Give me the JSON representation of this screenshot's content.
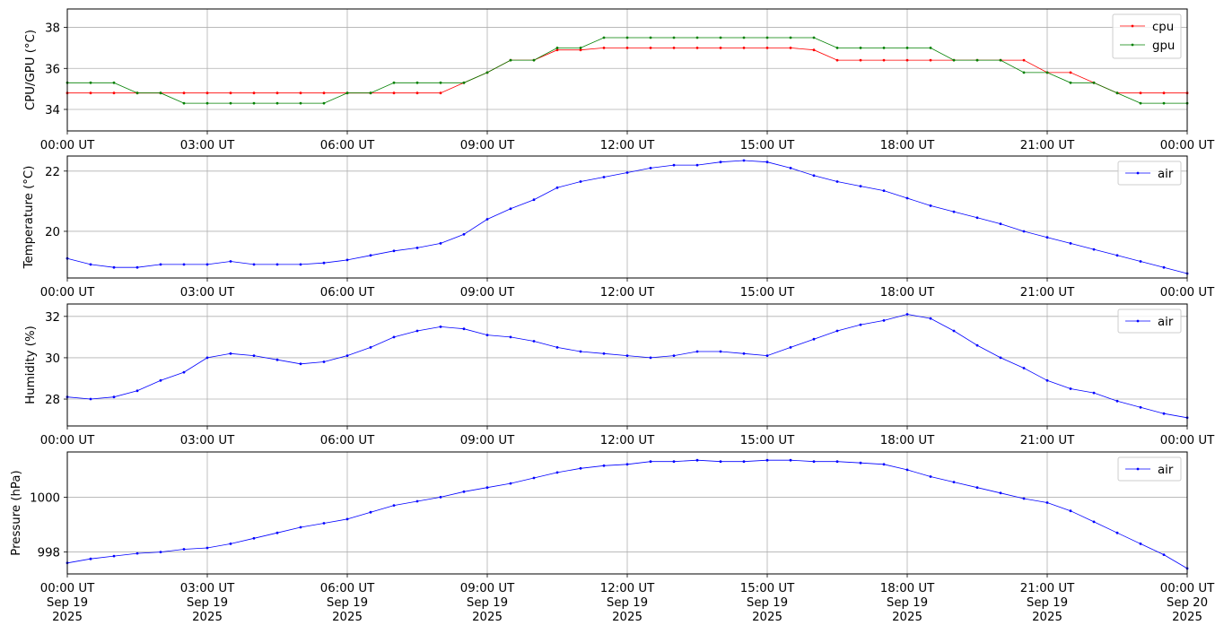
{
  "chart_data": [
    {
      "type": "line",
      "ylabel": "CPU/GPU (°C)",
      "ylim": [
        32.95,
        38.9
      ],
      "yticks": [
        34,
        36,
        38
      ],
      "xticks": [
        "00:00 UT",
        "03:00 UT",
        "06:00 UT",
        "09:00 UT",
        "12:00 UT",
        "15:00 UT",
        "18:00 UT",
        "21:00 UT",
        "00:00 UT"
      ],
      "grid": true,
      "legend": "top-right",
      "series": [
        {
          "name": "cpu",
          "color": "#ff0000",
          "x": [
            0,
            0.5,
            1,
            1.5,
            2,
            2.5,
            3,
            3.5,
            4,
            4.5,
            5,
            5.5,
            6,
            6.5,
            7,
            7.5,
            8,
            8.5,
            9,
            9.5,
            10,
            10.5,
            11,
            11.5,
            12,
            12.5,
            13,
            13.5,
            14,
            14.5,
            15,
            15.5,
            16,
            16.5,
            17,
            17.5,
            18,
            18.5,
            19,
            19.5,
            20,
            20.5,
            21,
            21.5,
            22,
            22.5,
            23,
            23.5,
            24
          ],
          "values": [
            34.8,
            34.8,
            34.8,
            34.8,
            34.8,
            34.8,
            34.8,
            34.8,
            34.8,
            34.8,
            34.8,
            34.8,
            34.8,
            34.8,
            34.8,
            34.8,
            34.8,
            35.3,
            35.8,
            36.4,
            36.4,
            36.9,
            36.9,
            37.0,
            37.0,
            37.0,
            37.0,
            37.0,
            37.0,
            37.0,
            37.0,
            37.0,
            36.9,
            36.4,
            36.4,
            36.4,
            36.4,
            36.4,
            36.4,
            36.4,
            36.4,
            36.4,
            35.8,
            35.8,
            35.3,
            34.8,
            34.8,
            34.8,
            34.8
          ]
        },
        {
          "name": "gpu",
          "color": "#008000",
          "x": [
            0,
            0.5,
            1,
            1.5,
            2,
            2.5,
            3,
            3.5,
            4,
            4.5,
            5,
            5.5,
            6,
            6.5,
            7,
            7.5,
            8,
            8.5,
            9,
            9.5,
            10,
            10.5,
            11,
            11.5,
            12,
            12.5,
            13,
            13.5,
            14,
            14.5,
            15,
            15.5,
            16,
            16.5,
            17,
            17.5,
            18,
            18.5,
            19,
            19.5,
            20,
            20.5,
            21,
            21.5,
            22,
            22.5,
            23,
            23.5,
            24
          ],
          "values": [
            35.3,
            35.3,
            35.3,
            34.8,
            34.8,
            34.3,
            34.3,
            34.3,
            34.3,
            34.3,
            34.3,
            34.3,
            34.8,
            34.8,
            35.3,
            35.3,
            35.3,
            35.3,
            35.8,
            36.4,
            36.4,
            37.0,
            37.0,
            37.5,
            37.5,
            37.5,
            37.5,
            37.5,
            37.5,
            37.5,
            37.5,
            37.5,
            37.5,
            37.0,
            37.0,
            37.0,
            37.0,
            37.0,
            36.4,
            36.4,
            36.4,
            35.8,
            35.8,
            35.3,
            35.3,
            34.8,
            34.3,
            34.3,
            34.3
          ]
        }
      ]
    },
    {
      "type": "line",
      "ylabel": "Temperature (°C)",
      "ylim": [
        18.45,
        22.5
      ],
      "yticks": [
        20,
        22
      ],
      "xticks": [
        "00:00 UT",
        "03:00 UT",
        "06:00 UT",
        "09:00 UT",
        "12:00 UT",
        "15:00 UT",
        "18:00 UT",
        "21:00 UT",
        "00:00 UT"
      ],
      "grid": true,
      "legend": "top-right",
      "series": [
        {
          "name": "air",
          "color": "#0000ff",
          "x": [
            0,
            0.5,
            1,
            1.5,
            2,
            2.5,
            3,
            3.5,
            4,
            4.5,
            5,
            5.5,
            6,
            6.5,
            7,
            7.5,
            8,
            8.5,
            9,
            9.5,
            10,
            10.5,
            11,
            11.5,
            12,
            12.5,
            13,
            13.5,
            14,
            14.5,
            15,
            15.5,
            16,
            16.5,
            17,
            17.5,
            18,
            18.5,
            19,
            19.5,
            20,
            20.5,
            21,
            21.5,
            22,
            22.5,
            23,
            23.5,
            24
          ],
          "values": [
            19.1,
            18.9,
            18.8,
            18.8,
            18.9,
            18.9,
            18.9,
            19.0,
            18.9,
            18.9,
            18.9,
            18.95,
            19.05,
            19.2,
            19.35,
            19.45,
            19.6,
            19.9,
            20.4,
            20.75,
            21.05,
            21.45,
            21.65,
            21.8,
            21.95,
            22.1,
            22.2,
            22.2,
            22.3,
            22.35,
            22.3,
            22.1,
            21.85,
            21.65,
            21.5,
            21.35,
            21.1,
            20.85,
            20.65,
            20.45,
            20.25,
            20.0,
            19.8,
            19.6,
            19.4,
            19.2,
            19.0,
            18.8,
            18.6
          ]
        }
      ]
    },
    {
      "type": "line",
      "ylabel": "Humidity (%)",
      "ylim": [
        26.7,
        32.6
      ],
      "yticks": [
        28,
        30,
        32
      ],
      "xticks": [
        "00:00 UT",
        "03:00 UT",
        "06:00 UT",
        "09:00 UT",
        "12:00 UT",
        "15:00 UT",
        "18:00 UT",
        "21:00 UT",
        "00:00 UT"
      ],
      "grid": true,
      "legend": "top-right",
      "series": [
        {
          "name": "air",
          "color": "#0000ff",
          "x": [
            0,
            0.5,
            1,
            1.5,
            2,
            2.5,
            3,
            3.5,
            4,
            4.5,
            5,
            5.5,
            6,
            6.5,
            7,
            7.5,
            8,
            8.5,
            9,
            9.5,
            10,
            10.5,
            11,
            11.5,
            12,
            12.5,
            13,
            13.5,
            14,
            14.5,
            15,
            15.5,
            16,
            16.5,
            17,
            17.5,
            18,
            18.5,
            19,
            19.5,
            20,
            20.5,
            21,
            21.5,
            22,
            22.5,
            23,
            23.5,
            24
          ],
          "values": [
            28.1,
            28.0,
            28.1,
            28.4,
            28.9,
            29.3,
            30.0,
            30.2,
            30.1,
            29.9,
            29.7,
            29.8,
            30.1,
            30.5,
            31.0,
            31.3,
            31.5,
            31.4,
            31.1,
            31.0,
            30.8,
            30.5,
            30.3,
            30.2,
            30.1,
            30.0,
            30.1,
            30.3,
            30.3,
            30.2,
            30.1,
            30.5,
            30.9,
            31.3,
            31.6,
            31.8,
            32.1,
            31.9,
            31.3,
            30.6,
            30.0,
            29.5,
            28.9,
            28.5,
            28.3,
            27.9,
            27.6,
            27.3,
            27.1
          ]
        }
      ]
    },
    {
      "type": "line",
      "ylabel": "Pressure (hPa)",
      "ylim": [
        997.2,
        1001.65
      ],
      "yticks": [
        998,
        1000
      ],
      "xticks": [
        "00:00 UT\nSep 19\n2025",
        "03:00 UT\nSep 19\n2025",
        "06:00 UT\nSep 19\n2025",
        "09:00 UT\nSep 19\n2025",
        "12:00 UT\nSep 19\n2025",
        "15:00 UT\nSep 19\n2025",
        "18:00 UT\nSep 19\n2025",
        "21:00 UT\nSep 19\n2025",
        "00:00 UT\nSep 20\n2025"
      ],
      "grid": true,
      "legend": "top-right",
      "series": [
        {
          "name": "air",
          "color": "#0000ff",
          "x": [
            0,
            0.5,
            1,
            1.5,
            2,
            2.5,
            3,
            3.5,
            4,
            4.5,
            5,
            5.5,
            6,
            6.5,
            7,
            7.5,
            8,
            8.5,
            9,
            9.5,
            10,
            10.5,
            11,
            11.5,
            12,
            12.5,
            13,
            13.5,
            14,
            14.5,
            15,
            15.5,
            16,
            16.5,
            17,
            17.5,
            18,
            18.5,
            19,
            19.5,
            20,
            20.5,
            21,
            21.5,
            22,
            22.5,
            23,
            23.5,
            24
          ],
          "values": [
            997.6,
            997.75,
            997.85,
            997.95,
            998.0,
            998.1,
            998.15,
            998.3,
            998.5,
            998.7,
            998.9,
            999.05,
            999.2,
            999.45,
            999.7,
            999.85,
            1000.0,
            1000.2,
            1000.35,
            1000.5,
            1000.7,
            1000.9,
            1001.05,
            1001.15,
            1001.2,
            1001.3,
            1001.3,
            1001.35,
            1001.3,
            1001.3,
            1001.35,
            1001.35,
            1001.3,
            1001.3,
            1001.25,
            1001.2,
            1001.0,
            1000.75,
            1000.55,
            1000.35,
            1000.15,
            999.95,
            999.8,
            999.5,
            999.1,
            998.7,
            998.3,
            997.9,
            997.4
          ]
        }
      ]
    }
  ]
}
